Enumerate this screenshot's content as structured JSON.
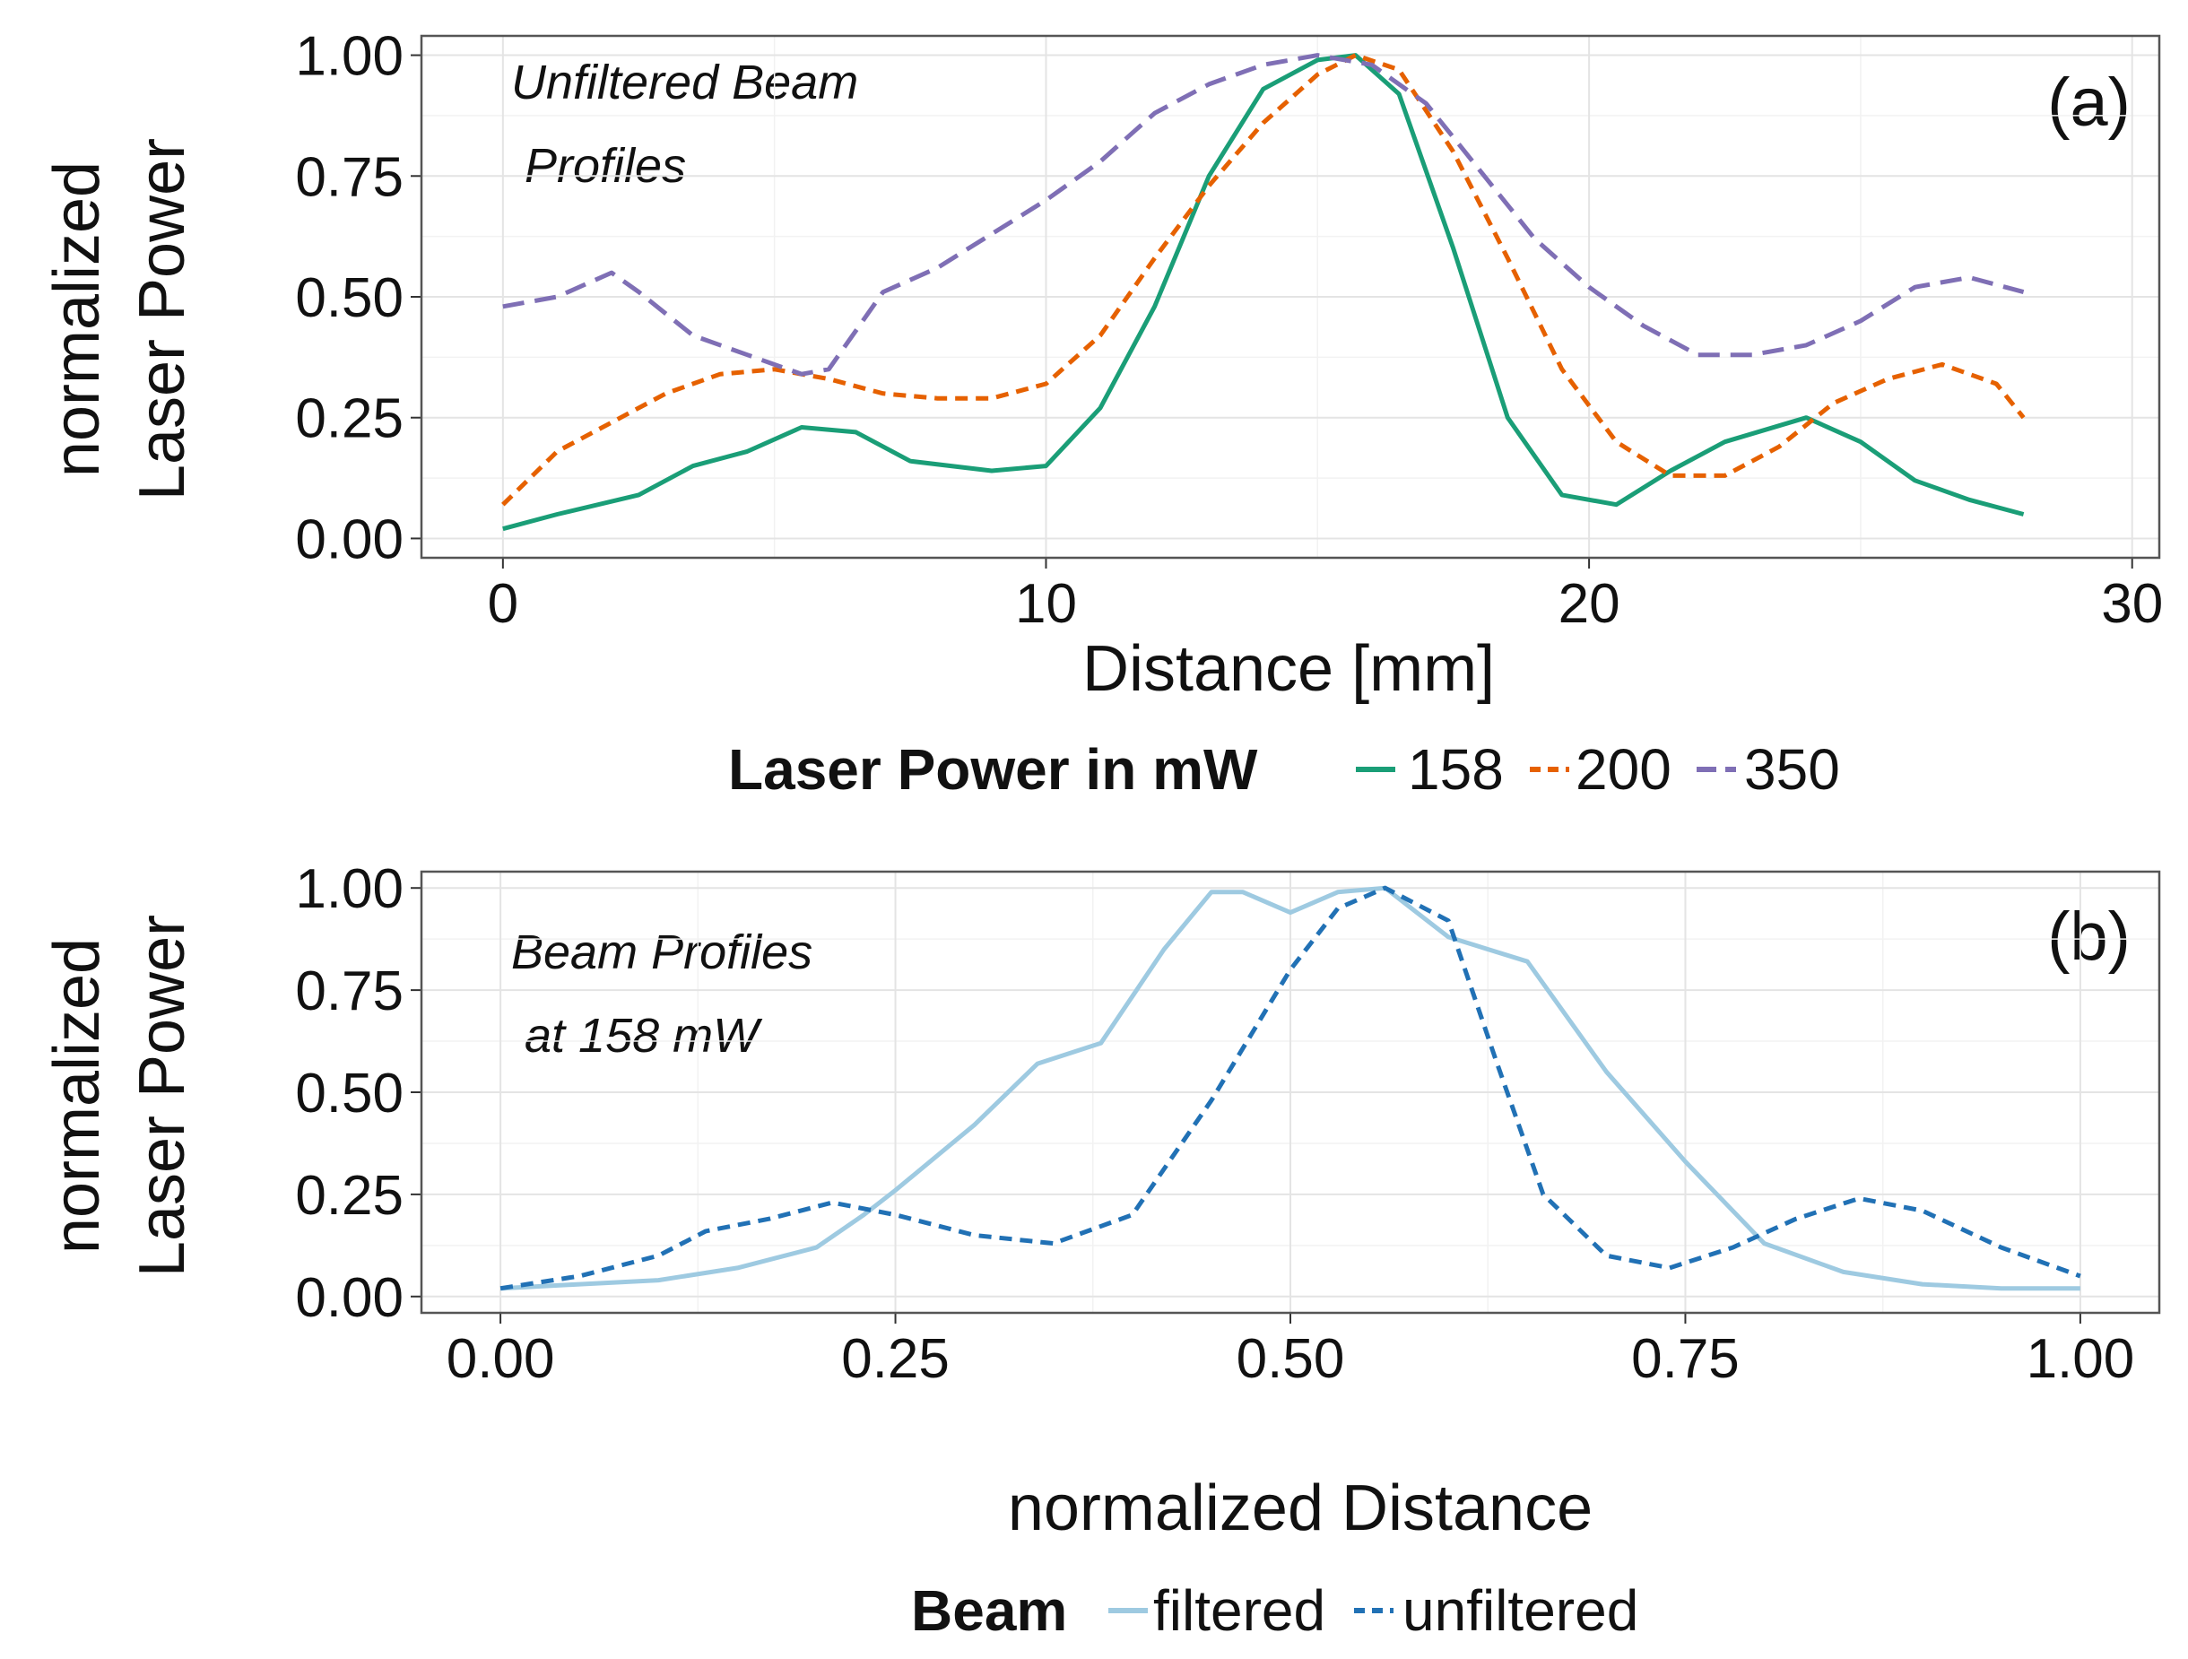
{
  "chart_data": [
    {
      "type": "line",
      "panel_label": "(a)",
      "annotation": [
        "Unfiltered Beam",
        " Profiles"
      ],
      "xlabel": "Distance [mm]",
      "ylabel": [
        "normalized",
        "Laser Power"
      ],
      "xlim": [
        -1.5,
        30.5
      ],
      "ylim": [
        -0.04,
        1.04
      ],
      "xticks": [
        0,
        10,
        20,
        30
      ],
      "xtick_labels": [
        "0",
        "10",
        "20",
        "30"
      ],
      "yticks": [
        0,
        0.25,
        0.5,
        0.75,
        1.0
      ],
      "ytick_labels": [
        "0.00",
        "0.25",
        "0.50",
        "0.75",
        "1.00"
      ],
      "grid": true,
      "legend": {
        "title": "Laser Power in mW",
        "position": "bottom"
      },
      "series": [
        {
          "name": "158",
          "color": "#1a9e77",
          "dash": "solid",
          "x": [
            0,
            1,
            2.5,
            3.5,
            4.5,
            5.5,
            6.5,
            7.5,
            9,
            10,
            11,
            12,
            13,
            14,
            15,
            15.7,
            16.5,
            17.5,
            18.5,
            19.5,
            20.5,
            21.5,
            22.5,
            24,
            25,
            26,
            27,
            28
          ],
          "y": [
            0.02,
            0.05,
            0.09,
            0.15,
            0.18,
            0.23,
            0.22,
            0.16,
            0.14,
            0.15,
            0.27,
            0.48,
            0.75,
            0.93,
            0.99,
            1.0,
            0.92,
            0.6,
            0.25,
            0.09,
            0.07,
            0.14,
            0.2,
            0.25,
            0.2,
            0.12,
            0.08,
            0.05
          ]
        },
        {
          "name": "200",
          "color": "#e66100",
          "dash": "dashed",
          "x": [
            0,
            1,
            2,
            3,
            4,
            5,
            6,
            7,
            8,
            9,
            10,
            11,
            12,
            13,
            14,
            15,
            15.7,
            16.5,
            17.5,
            18.5,
            19.5,
            20.5,
            21.5,
            22.5,
            23.5,
            24.5,
            25.5,
            26.5,
            27.5,
            28
          ],
          "y": [
            0.07,
            0.18,
            0.24,
            0.3,
            0.34,
            0.35,
            0.33,
            0.3,
            0.29,
            0.29,
            0.32,
            0.42,
            0.58,
            0.73,
            0.86,
            0.96,
            1.0,
            0.97,
            0.8,
            0.58,
            0.35,
            0.2,
            0.13,
            0.13,
            0.19,
            0.28,
            0.33,
            0.36,
            0.32,
            0.25
          ]
        },
        {
          "name": "350",
          "color": "#7f6fb5",
          "dash": "longdash",
          "x": [
            0,
            1,
            2,
            2.5,
            3.5,
            4.5,
            5.5,
            6,
            7,
            8,
            9,
            10,
            11,
            12,
            13,
            14,
            15,
            16,
            17,
            18,
            19,
            20,
            21,
            22,
            23,
            24,
            25,
            26,
            27,
            28
          ],
          "y": [
            0.48,
            0.5,
            0.55,
            0.51,
            0.42,
            0.38,
            0.34,
            0.35,
            0.51,
            0.56,
            0.63,
            0.7,
            0.78,
            0.88,
            0.94,
            0.98,
            1.0,
            0.98,
            0.9,
            0.76,
            0.62,
            0.52,
            0.44,
            0.38,
            0.38,
            0.4,
            0.45,
            0.52,
            0.54,
            0.51
          ]
        }
      ]
    },
    {
      "type": "line",
      "panel_label": "(b)",
      "annotation": [
        "Beam Profiles",
        " at 158 mW"
      ],
      "xlabel": "normalized Distance",
      "ylabel": [
        "normalized",
        "Laser Power"
      ],
      "xlim": [
        -0.05,
        1.05
      ],
      "ylim": [
        -0.04,
        1.04
      ],
      "xticks": [
        0,
        0.25,
        0.5,
        0.75,
        1.0
      ],
      "xtick_labels": [
        "0.00",
        "0.25",
        "0.50",
        "0.75",
        "1.00"
      ],
      "yticks": [
        0,
        0.25,
        0.5,
        0.75,
        1.0
      ],
      "ytick_labels": [
        "0.00",
        "0.25",
        "0.50",
        "0.75",
        "1.00"
      ],
      "grid": true,
      "legend": {
        "title": "Beam",
        "position": "bottom"
      },
      "series": [
        {
          "name": "filtered",
          "color": "#9ecae1",
          "dash": "solid",
          "x": [
            0,
            0.05,
            0.1,
            0.15,
            0.2,
            0.23,
            0.25,
            0.3,
            0.34,
            0.38,
            0.42,
            0.45,
            0.47,
            0.5,
            0.53,
            0.56,
            0.6,
            0.65,
            0.7,
            0.75,
            0.8,
            0.85,
            0.9,
            0.95,
            1.0
          ],
          "y": [
            0.02,
            0.03,
            0.04,
            0.07,
            0.12,
            0.2,
            0.26,
            0.42,
            0.57,
            0.62,
            0.85,
            0.99,
            0.99,
            0.94,
            0.99,
            1.0,
            0.88,
            0.82,
            0.55,
            0.33,
            0.13,
            0.06,
            0.03,
            0.02,
            0.02
          ]
        },
        {
          "name": "unfiltered",
          "color": "#2171b5",
          "dash": "dashed",
          "x": [
            0,
            0.05,
            0.1,
            0.13,
            0.17,
            0.21,
            0.25,
            0.3,
            0.35,
            0.4,
            0.45,
            0.5,
            0.53,
            0.56,
            0.6,
            0.63,
            0.66,
            0.7,
            0.74,
            0.78,
            0.82,
            0.86,
            0.9,
            0.95,
            1.0
          ],
          "y": [
            0.02,
            0.05,
            0.1,
            0.16,
            0.19,
            0.23,
            0.2,
            0.15,
            0.13,
            0.2,
            0.48,
            0.8,
            0.95,
            1.0,
            0.92,
            0.58,
            0.25,
            0.1,
            0.07,
            0.12,
            0.19,
            0.24,
            0.21,
            0.12,
            0.05
          ]
        }
      ]
    }
  ]
}
